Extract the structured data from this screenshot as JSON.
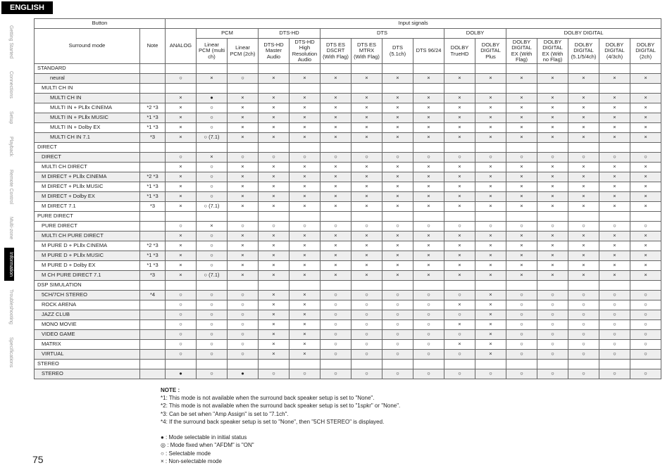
{
  "page": {
    "lang_tab": "ENGLISH",
    "number": "75"
  },
  "side_tabs": [
    {
      "label": "Getting Started",
      "active": false
    },
    {
      "label": "Connections",
      "active": false
    },
    {
      "label": "Setup",
      "active": false
    },
    {
      "label": "Playback",
      "active": false
    },
    {
      "label": "Remote Control",
      "active": false
    },
    {
      "label": "Multi-zone",
      "active": false
    },
    {
      "label": "Information",
      "active": true
    },
    {
      "label": "Troubleshooting",
      "active": false
    },
    {
      "label": "Specifications",
      "active": false
    }
  ],
  "symbols": {
    "sel_init": "●",
    "fixed": "◎",
    "sel": "○",
    "no": "×"
  },
  "headers": {
    "top_left": "Button",
    "top_right": "Input signals",
    "row2": [
      "",
      "",
      "PCM",
      "",
      "DTS-HD",
      "",
      "DTS",
      "",
      "",
      "",
      "DOLBY",
      "",
      "DOLBY DIGITAL",
      "",
      "",
      "",
      ""
    ],
    "col_labels": [
      "Surround mode",
      "Note",
      "ANALOG",
      "Linear PCM (multi ch)",
      "Linear PCM (2ch)",
      "DTS-HD Master Audio",
      "DTS-HD High Resolution Audio",
      "DTS ES DSCRT (With Flag)",
      "DTS ES MTRX (With Flag)",
      "DTS (5.1ch)",
      "DTS 96/24",
      "DOLBY TrueHD",
      "DOLBY DIGITAL Plus",
      "DOLBY DIGITAL EX (With Flag)",
      "DOLBY DIGITAL EX (With no Flag)",
      "DOLBY DIGITAL (5.1/5/4ch)",
      "DOLBY DIGITAL (4/3ch)",
      "DOLBY DIGITAL (2ch)"
    ]
  },
  "sections": [
    {
      "name": "STANDARD",
      "rows": [
        {
          "l": "neural",
          "ind": 2,
          "shade": true,
          "n": "",
          "c": [
            "○",
            "×",
            "○",
            "×",
            "×",
            "×",
            "×",
            "×",
            "×",
            "×",
            "×",
            "×",
            "×",
            "×",
            "×",
            "×"
          ]
        },
        {
          "l": "MULTI CH IN",
          "ind": 1,
          "shade": false,
          "n": "",
          "c": [
            "",
            "",
            "",
            "",
            "",
            "",
            "",
            "",
            "",
            "",
            "",
            "",
            "",
            "",
            "",
            ""
          ]
        },
        {
          "l": "MULTI CH IN",
          "ind": 2,
          "shade": true,
          "n": "",
          "c": [
            "×",
            "●",
            "×",
            "×",
            "×",
            "×",
            "×",
            "×",
            "×",
            "×",
            "×",
            "×",
            "×",
            "×",
            "×",
            "×"
          ]
        },
        {
          "l": "MULTI IN + PLⅡx CINEMA",
          "ind": 2,
          "shade": false,
          "n": "*2 *3",
          "c": [
            "×",
            "○",
            "×",
            "×",
            "×",
            "×",
            "×",
            "×",
            "×",
            "×",
            "×",
            "×",
            "×",
            "×",
            "×",
            "×"
          ]
        },
        {
          "l": "MULTI IN + PLⅡx MUSIC",
          "ind": 2,
          "shade": true,
          "n": "*1 *3",
          "c": [
            "×",
            "○",
            "×",
            "×",
            "×",
            "×",
            "×",
            "×",
            "×",
            "×",
            "×",
            "×",
            "×",
            "×",
            "×",
            "×"
          ]
        },
        {
          "l": "MULTI IN + Dolby EX",
          "ind": 2,
          "shade": false,
          "n": "*1 *3",
          "c": [
            "×",
            "○",
            "×",
            "×",
            "×",
            "×",
            "×",
            "×",
            "×",
            "×",
            "×",
            "×",
            "×",
            "×",
            "×",
            "×"
          ]
        },
        {
          "l": "MULTI CH IN 7.1",
          "ind": 2,
          "shade": true,
          "n": "*3",
          "c": [
            "×",
            "○ (7.1)",
            "×",
            "×",
            "×",
            "×",
            "×",
            "×",
            "×",
            "×",
            "×",
            "×",
            "×",
            "×",
            "×",
            "×"
          ]
        }
      ]
    },
    {
      "name": "DIRECT",
      "rows": [
        {
          "l": "DIRECT",
          "ind": 1,
          "shade": true,
          "n": "",
          "c": [
            "○",
            "×",
            "○",
            "○",
            "○",
            "○",
            "○",
            "○",
            "○",
            "○",
            "○",
            "○",
            "○",
            "○",
            "○",
            "○"
          ]
        },
        {
          "l": "MULTI CH DIRECT",
          "ind": 1,
          "shade": false,
          "n": "",
          "c": [
            "×",
            "○",
            "×",
            "×",
            "×",
            "×",
            "×",
            "×",
            "×",
            "×",
            "×",
            "×",
            "×",
            "×",
            "×",
            "×"
          ]
        },
        {
          "l": "M DIRECT + PLⅡx CINEMA",
          "ind": 1,
          "shade": true,
          "n": "*2 *3",
          "c": [
            "×",
            "○",
            "×",
            "×",
            "×",
            "×",
            "×",
            "×",
            "×",
            "×",
            "×",
            "×",
            "×",
            "×",
            "×",
            "×"
          ]
        },
        {
          "l": "M DIRECT + PLⅡx MUSIC",
          "ind": 1,
          "shade": false,
          "n": "*1 *3",
          "c": [
            "×",
            "○",
            "×",
            "×",
            "×",
            "×",
            "×",
            "×",
            "×",
            "×",
            "×",
            "×",
            "×",
            "×",
            "×",
            "×"
          ]
        },
        {
          "l": "M DIRECT + Dolby EX",
          "ind": 1,
          "shade": true,
          "n": "*1 *3",
          "c": [
            "×",
            "○",
            "×",
            "×",
            "×",
            "×",
            "×",
            "×",
            "×",
            "×",
            "×",
            "×",
            "×",
            "×",
            "×",
            "×"
          ]
        },
        {
          "l": "M DIRECT 7.1",
          "ind": 1,
          "shade": false,
          "n": "*3",
          "c": [
            "×",
            "○ (7.1)",
            "×",
            "×",
            "×",
            "×",
            "×",
            "×",
            "×",
            "×",
            "×",
            "×",
            "×",
            "×",
            "×",
            "×"
          ]
        }
      ]
    },
    {
      "name": "PURE DIRECT",
      "rows": [
        {
          "l": "PURE DIRECT",
          "ind": 1,
          "shade": false,
          "n": "",
          "c": [
            "○",
            "×",
            "○",
            "○",
            "○",
            "○",
            "○",
            "○",
            "○",
            "○",
            "○",
            "○",
            "○",
            "○",
            "○",
            "○"
          ]
        },
        {
          "l": "MULTI CH PURE DIRECT",
          "ind": 1,
          "shade": true,
          "n": "",
          "c": [
            "×",
            "○",
            "×",
            "×",
            "×",
            "×",
            "×",
            "×",
            "×",
            "×",
            "×",
            "×",
            "×",
            "×",
            "×",
            "×"
          ]
        },
        {
          "l": "M PURE D + PLⅡx CINEMA",
          "ind": 1,
          "shade": false,
          "n": "*2 *3",
          "c": [
            "×",
            "○",
            "×",
            "×",
            "×",
            "×",
            "×",
            "×",
            "×",
            "×",
            "×",
            "×",
            "×",
            "×",
            "×",
            "×"
          ]
        },
        {
          "l": "M PURE D + PLⅡx MUSIC",
          "ind": 1,
          "shade": true,
          "n": "*1 *3",
          "c": [
            "×",
            "○",
            "×",
            "×",
            "×",
            "×",
            "×",
            "×",
            "×",
            "×",
            "×",
            "×",
            "×",
            "×",
            "×",
            "×"
          ]
        },
        {
          "l": "M PURE D + Dolby EX",
          "ind": 1,
          "shade": false,
          "n": "*1 *3",
          "c": [
            "×",
            "○",
            "×",
            "×",
            "×",
            "×",
            "×",
            "×",
            "×",
            "×",
            "×",
            "×",
            "×",
            "×",
            "×",
            "×"
          ]
        },
        {
          "l": "M CH PURE DIRECT 7.1",
          "ind": 1,
          "shade": true,
          "n": "*3",
          "c": [
            "×",
            "○ (7.1)",
            "×",
            "×",
            "×",
            "×",
            "×",
            "×",
            "×",
            "×",
            "×",
            "×",
            "×",
            "×",
            "×",
            "×"
          ]
        }
      ]
    },
    {
      "name": "DSP SIMULATION",
      "rows": [
        {
          "l": "5CH/7CH STEREO",
          "ind": 1,
          "shade": true,
          "n": "*4",
          "c": [
            "○",
            "○",
            "○",
            "×",
            "×",
            "○",
            "○",
            "○",
            "○",
            "○",
            "×",
            "○",
            "○",
            "○",
            "○",
            "○"
          ]
        },
        {
          "l": "ROCK ARENA",
          "ind": 1,
          "shade": false,
          "n": "",
          "c": [
            "○",
            "○",
            "○",
            "×",
            "×",
            "○",
            "○",
            "○",
            "○",
            "×",
            "×",
            "○",
            "○",
            "○",
            "○",
            "○"
          ]
        },
        {
          "l": "JAZZ CLUB",
          "ind": 1,
          "shade": true,
          "n": "",
          "c": [
            "○",
            "○",
            "○",
            "×",
            "×",
            "○",
            "○",
            "○",
            "○",
            "○",
            "×",
            "○",
            "○",
            "○",
            "○",
            "○"
          ]
        },
        {
          "l": "MONO MOVIE",
          "ind": 1,
          "shade": false,
          "n": "",
          "c": [
            "○",
            "○",
            "○",
            "×",
            "×",
            "○",
            "○",
            "○",
            "○",
            "×",
            "×",
            "○",
            "○",
            "○",
            "○",
            "○"
          ]
        },
        {
          "l": "VIDEO GAME",
          "ind": 1,
          "shade": true,
          "n": "",
          "c": [
            "○",
            "○",
            "○",
            "×",
            "×",
            "○",
            "○",
            "○",
            "○",
            "○",
            "×",
            "○",
            "○",
            "○",
            "○",
            "○"
          ]
        },
        {
          "l": "MATRIX",
          "ind": 1,
          "shade": false,
          "n": "",
          "c": [
            "○",
            "○",
            "○",
            "×",
            "×",
            "○",
            "○",
            "○",
            "○",
            "×",
            "×",
            "○",
            "○",
            "○",
            "○",
            "○"
          ]
        },
        {
          "l": "VIRTUAL",
          "ind": 1,
          "shade": true,
          "n": "",
          "c": [
            "○",
            "○",
            "○",
            "×",
            "×",
            "○",
            "○",
            "○",
            "○",
            "○",
            "×",
            "○",
            "○",
            "○",
            "○",
            "○"
          ]
        }
      ]
    },
    {
      "name": "STEREO",
      "rows": [
        {
          "l": "STEREO",
          "ind": 1,
          "shade": true,
          "n": "",
          "c": [
            "●",
            "○",
            "●",
            "○",
            "○",
            "○",
            "○",
            "○",
            "○",
            "○",
            "○",
            "○",
            "○",
            "○",
            "○",
            "○"
          ]
        }
      ]
    }
  ],
  "notes": {
    "title": "NOTE :",
    "items": [
      "*1: This mode is not available when the surround back speaker setup is set to \"None\".",
      "*2: This mode is not available when the surround back speaker setup is set to \"1spkr\" or \"None\".",
      "*3: Can be set when \"Amp Assign\" is set to \"7.1ch\".",
      "*4: If the surround back speaker setup is set to \"None\", then \"5CH STEREO\" is displayed."
    ],
    "legend": [
      {
        "s": "●",
        "t": "Mode selectable in initial status"
      },
      {
        "s": "◎",
        "t": "Mode fixed when \"AFDM\" is \"ON\""
      },
      {
        "s": "○",
        "t": "Selectable mode"
      },
      {
        "s": "×",
        "t": "Non-selectable mode"
      }
    ]
  }
}
